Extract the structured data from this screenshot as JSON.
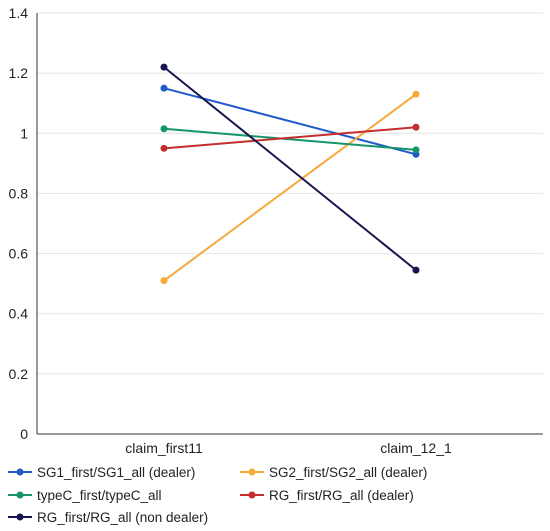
{
  "chart_data": {
    "type": "line",
    "title": "",
    "xlabel": "",
    "ylabel": "",
    "categories": [
      "claim_first11",
      "claim_12_1"
    ],
    "ylim": [
      0,
      1.4
    ],
    "yticks": [
      "0",
      "0.2",
      "0.4",
      "0.6",
      "0.8",
      "1",
      "1.2",
      "1.4"
    ],
    "grid": "horizontal",
    "legend_position": "bottom",
    "series": [
      {
        "name": "SG1_first/SG1_all (dealer)",
        "color": "#1f5bc9",
        "values": [
          1.15,
          0.93
        ]
      },
      {
        "name": "SG2_first/SG2_all (dealer)",
        "color": "#f5a93b",
        "values": [
          0.51,
          1.13
        ]
      },
      {
        "name": "typeC_first/typeC_all",
        "color": "#16956b",
        "values": [
          1.015,
          0.945
        ]
      },
      {
        "name": "RG_first/RG_all (dealer)",
        "color": "#c62d2d",
        "values": [
          0.95,
          1.02
        ]
      },
      {
        "name": "RG_first/RG_all (non dealer)",
        "color": "#17154f",
        "values": [
          1.22,
          0.545
        ]
      }
    ]
  }
}
